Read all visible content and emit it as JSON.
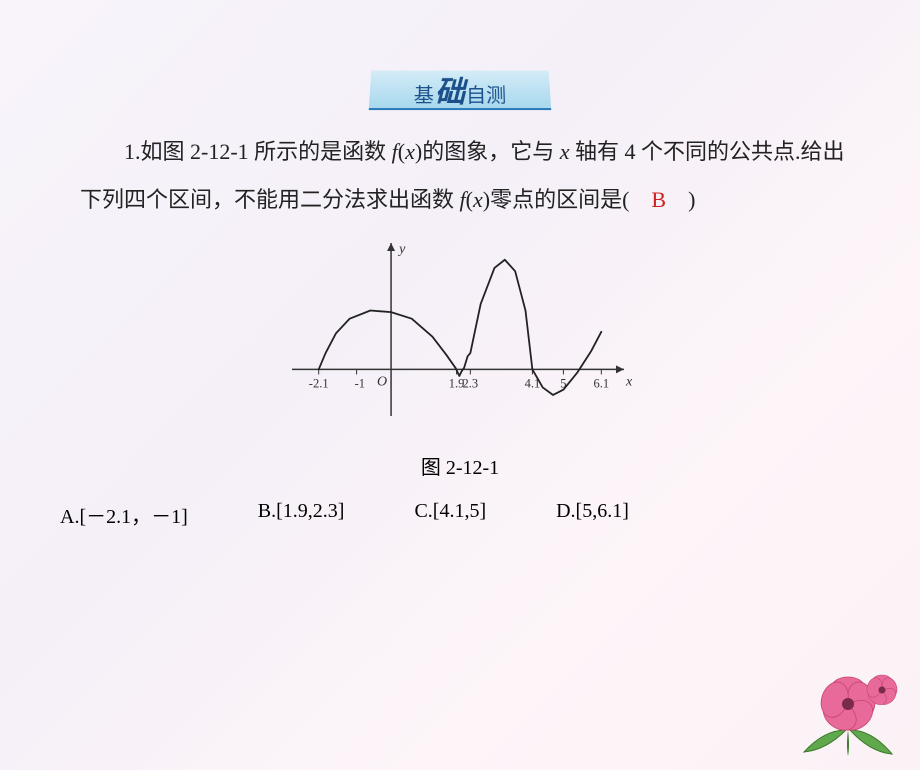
{
  "banner": {
    "left": "基",
    "mid": "础",
    "right": "自测"
  },
  "q": {
    "line1_a": "1.如图 2-12-1 所示的是函数 ",
    "fx": "f",
    "paren_l": "(",
    "x": "x",
    "paren_r": ")",
    "line1_b": "的图象，它与 ",
    "xaxis": "x",
    "line1_c": " 轴有 4 个不",
    "line2": "同的公共点.给出下列四个区间，不能用二分法求出函数 ",
    "line3": "点的区间是(　",
    "zero_word": "零",
    "answer": "B",
    "closep": "　)"
  },
  "fig": {
    "label": "图 2-12-1",
    "y_label": "y",
    "x_label": "x",
    "O_label": "O",
    "ticks": [
      "-2.1",
      "-1",
      "1.9",
      "2.3",
      "4.1",
      "5",
      "6.1"
    ],
    "tick_x": [
      -2.1,
      -1.0,
      1.9,
      2.3,
      4.1,
      5.0,
      6.1
    ],
    "curve_points": [
      [
        -2.1,
        0
      ],
      [
        -1.9,
        0.5
      ],
      [
        -1.6,
        1.1
      ],
      [
        -1.2,
        1.55
      ],
      [
        -0.6,
        1.8
      ],
      [
        0,
        1.75
      ],
      [
        0.6,
        1.55
      ],
      [
        1.2,
        1.0
      ],
      [
        1.6,
        0.45
      ],
      [
        1.88,
        0.03
      ],
      [
        1.98,
        -0.2
      ],
      [
        2.05,
        -0.05
      ],
      [
        2.12,
        0.05
      ],
      [
        2.22,
        0.4
      ],
      [
        2.3,
        0.5
      ],
      [
        2.6,
        2.0
      ],
      [
        3.0,
        3.1
      ],
      [
        3.3,
        3.35
      ],
      [
        3.6,
        3.0
      ],
      [
        3.9,
        1.8
      ],
      [
        4.1,
        0.0
      ],
      [
        4.4,
        -0.55
      ],
      [
        4.7,
        -0.78
      ],
      [
        5.0,
        -0.62
      ],
      [
        5.4,
        -0.1
      ],
      [
        5.8,
        0.55
      ],
      [
        6.1,
        1.15
      ]
    ],
    "xrange": [
      -2.7,
      6.7
    ],
    "yrange": [
      -1.3,
      3.8
    ],
    "axis_color": "#333333",
    "curve_color": "#222222",
    "tick_len": 5
  },
  "opts": {
    "A": "A.[－2.1，－1]",
    "B": "B.[1.9,2.3]",
    "C": "C.[4.1,5]",
    "D": "D.[5,6.1]"
  },
  "flower": {
    "petal_color": "#e86a9a",
    "petal_dark": "#c7446f",
    "leaf_color": "#5fa84c",
    "leaf_dark": "#3d7a2d",
    "center": "#7a2a4a"
  }
}
